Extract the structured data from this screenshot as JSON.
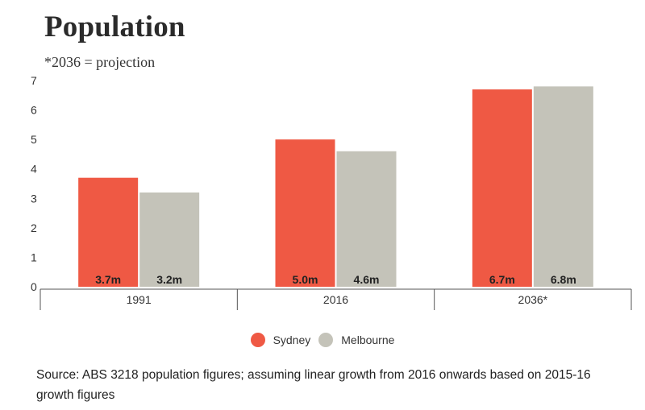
{
  "title": "Population",
  "subtitle": "*2036 = projection",
  "source": "Source:  ABS 3218 population figures; assuming linear growth from 2016 onwards based on 2015-16 growth figures",
  "colors": {
    "sydney": "#ef5944",
    "melbourne": "#c4c3b9",
    "axis": "#555555",
    "text": "#222222"
  },
  "chart_data": {
    "type": "bar",
    "title": "Population",
    "subtitle": "*2036 = projection",
    "categories": [
      "1991",
      "2016",
      "2036*"
    ],
    "series": [
      {
        "name": "Sydney",
        "values": [
          3.7,
          5.0,
          6.7
        ],
        "labels": [
          "3.7m",
          "5.0m",
          "6.7m"
        ]
      },
      {
        "name": "Melbourne",
        "values": [
          3.2,
          4.6,
          6.8
        ],
        "labels": [
          "3.2m",
          "4.6m",
          "6.8m"
        ]
      }
    ],
    "ylim": [
      0,
      7
    ],
    "yticks": [
      "0",
      "1",
      "2",
      "3",
      "4",
      "5",
      "6",
      "7"
    ],
    "grid": false,
    "legend_position": "bottom"
  }
}
